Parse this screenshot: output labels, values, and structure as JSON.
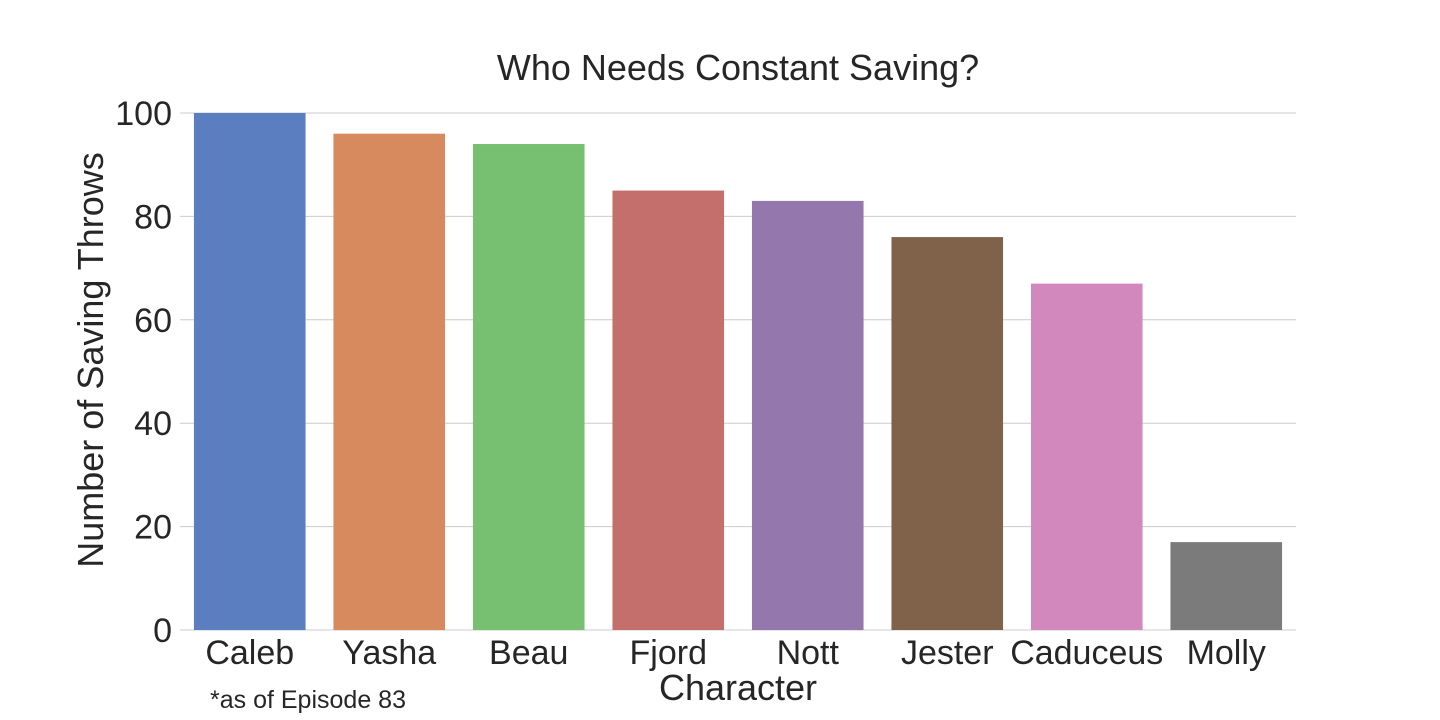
{
  "chart_data": {
    "type": "bar",
    "title": "Who Needs Constant Saving?",
    "xlabel": "Character",
    "ylabel": "Number of Saving Throws",
    "categories": [
      "Caleb",
      "Yasha",
      "Beau",
      "Fjord",
      "Nott",
      "Jester",
      "Caduceus",
      "Molly"
    ],
    "values": [
      100,
      96,
      94,
      85,
      83,
      76,
      67,
      17
    ],
    "colors": [
      "#5b7ec0",
      "#d88a5f",
      "#77c071",
      "#c46f6c",
      "#9477ac",
      "#80624a",
      "#d288bc",
      "#7b7b7b"
    ],
    "ylim": [
      0,
      100
    ],
    "yticks": [
      0,
      20,
      40,
      60,
      80,
      100
    ],
    "grid": true,
    "footnote": "*as of Episode 83"
  }
}
